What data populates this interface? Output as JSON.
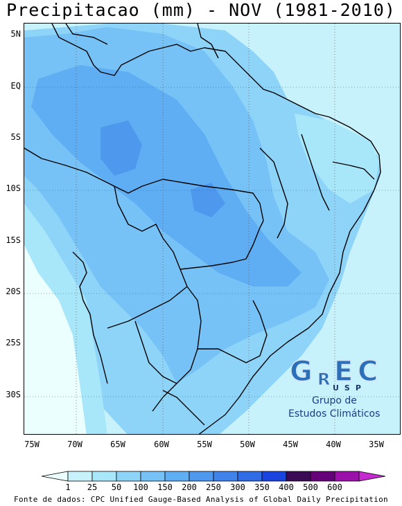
{
  "title": "Precipitacao (mm) - NOV (1981-2010)",
  "map": {
    "lat_labels": [
      "5N",
      "EQ",
      "5S",
      "10S",
      "15S",
      "20S",
      "25S",
      "30S"
    ],
    "lon_labels": [
      "75W",
      "70W",
      "65W",
      "60W",
      "55W",
      "50W",
      "45W",
      "40W",
      "35W"
    ]
  },
  "colorbar": {
    "levels": [
      "1",
      "25",
      "50",
      "100",
      "150",
      "200",
      "250",
      "300",
      "350",
      "400",
      "500",
      "600"
    ],
    "colors": [
      "#ebffff",
      "#c8f2fb",
      "#a8e6fa",
      "#8ed4f8",
      "#76c2f6",
      "#5fadf2",
      "#4e98ee",
      "#3f82ea",
      "#2f6ce6",
      "#1a44e0",
      "#3b0a54",
      "#66007a",
      "#9a10a8",
      "#c52ad0"
    ]
  },
  "source": "Fonte de dados: CPC Unified Gauge-Based Analysis of Global Daily Precipitation",
  "logo": {
    "letters": "GREC",
    "usp": "USP",
    "line1": "Grupo de",
    "line2": "Estudos Climáticos"
  }
}
